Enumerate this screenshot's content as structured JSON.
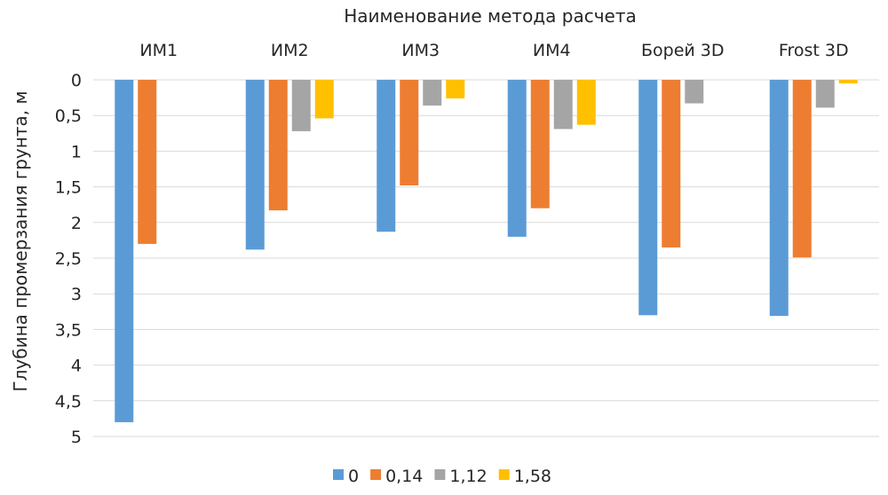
{
  "chart_data": {
    "type": "bar",
    "orientation": "vertical-inverted",
    "title": "",
    "xlabel": "Наименование метода расчета",
    "xaxis_position": "top",
    "ylabel": "Глубина промерзания грунта, м",
    "ylim": [
      0,
      5
    ],
    "yticks": [
      "0",
      "0,5",
      "1",
      "1,5",
      "2",
      "2,5",
      "3",
      "3,5",
      "4",
      "4,5",
      "5"
    ],
    "y_inverted": true,
    "grid": true,
    "legend_position": "bottom",
    "categories": [
      "ИМ1",
      "ИМ2",
      "ИМ3",
      "ИМ4",
      "Борей 3D",
      "Frost 3D"
    ],
    "series": [
      {
        "name": "0",
        "color": "#5B9BD5",
        "values": [
          4.8,
          2.38,
          2.13,
          2.2,
          3.3,
          3.31
        ]
      },
      {
        "name": "0,14",
        "color": "#ED7D31",
        "values": [
          2.3,
          1.83,
          1.48,
          1.8,
          2.35,
          2.49
        ]
      },
      {
        "name": "1,12",
        "color": "#A5A5A5",
        "values": [
          null,
          0.72,
          0.36,
          0.69,
          0.33,
          0.39
        ]
      },
      {
        "name": "1,58",
        "color": "#FFC000",
        "values": [
          null,
          0.54,
          0.26,
          0.63,
          null,
          0.05
        ]
      }
    ]
  }
}
